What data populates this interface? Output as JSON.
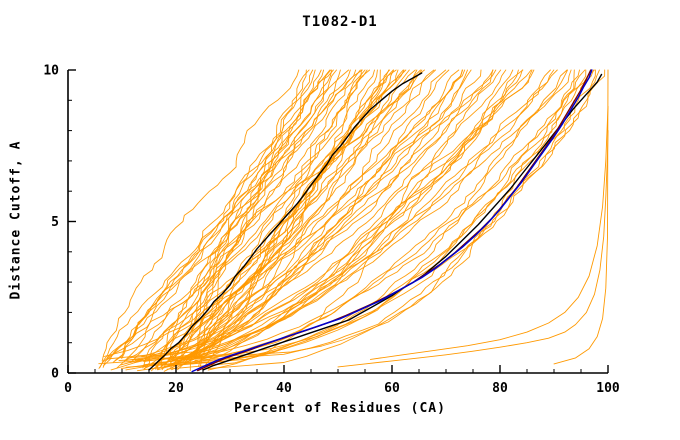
{
  "chart_data": {
    "type": "line",
    "title": "T1082-D1",
    "xlabel": "Percent of Residues (CA)",
    "ylabel": "Distance Cutoff, A",
    "xlim": [
      0,
      100
    ],
    "ylim": [
      0,
      10
    ],
    "x_major_ticks": [
      0,
      20,
      40,
      60,
      80,
      100
    ],
    "x_minor_step": 5,
    "y_major_ticks": [
      0,
      5,
      10
    ],
    "y_minor_step": 1,
    "grid": false,
    "axis_color": "#000000",
    "ensemble": {
      "description": "bundle of server model GDT curves",
      "color": "#FF9900",
      "width": 0.9,
      "count": 78,
      "seed": 7,
      "start_x_range": [
        5,
        26
      ],
      "end_x_range": [
        42,
        100
      ],
      "shape_range": [
        0.38,
        1.12
      ],
      "y_start_range": [
        0.05,
        0.55
      ],
      "jitter": 1.5,
      "steps": 48
    },
    "outlier_series": [
      {
        "name": "ensemble-outlier-1",
        "color": "#FF9900",
        "width": 0.9,
        "points": [
          [
            50,
            0.2
          ],
          [
            55,
            0.3
          ],
          [
            60,
            0.4
          ],
          [
            65,
            0.5
          ],
          [
            70,
            0.6
          ],
          [
            75,
            0.72
          ],
          [
            80,
            0.85
          ],
          [
            85,
            1.0
          ],
          [
            89,
            1.15
          ],
          [
            92,
            1.35
          ],
          [
            94,
            1.6
          ],
          [
            96,
            2.0
          ],
          [
            97.5,
            2.6
          ],
          [
            98.5,
            3.4
          ],
          [
            99.2,
            4.5
          ],
          [
            99.6,
            5.8
          ],
          [
            99.9,
            7.2
          ],
          [
            100,
            8.0
          ]
        ]
      },
      {
        "name": "ensemble-outlier-2",
        "color": "#FF9900",
        "width": 0.9,
        "points": [
          [
            56,
            0.45
          ],
          [
            62,
            0.6
          ],
          [
            68,
            0.75
          ],
          [
            74,
            0.9
          ],
          [
            80,
            1.1
          ],
          [
            85,
            1.35
          ],
          [
            89,
            1.65
          ],
          [
            92,
            2.0
          ],
          [
            94.5,
            2.5
          ],
          [
            96.5,
            3.2
          ],
          [
            98,
            4.2
          ],
          [
            99,
            5.5
          ],
          [
            99.6,
            7.0
          ],
          [
            100,
            8.8
          ]
        ]
      },
      {
        "name": "ensemble-outlier-3",
        "color": "#FF9900",
        "width": 0.9,
        "points": [
          [
            90,
            0.3
          ],
          [
            94,
            0.5
          ],
          [
            96.5,
            0.8
          ],
          [
            98,
            1.2
          ],
          [
            99,
            1.8
          ],
          [
            99.6,
            2.8
          ],
          [
            99.9,
            4.5
          ],
          [
            100,
            10
          ]
        ]
      }
    ],
    "highlight_series": [
      {
        "name": "model-1-black",
        "color": "#000000",
        "width": 1.4,
        "points": [
          [
            15,
            0.1
          ],
          [
            16.5,
            0.35
          ],
          [
            18,
            0.6
          ],
          [
            19,
            0.8
          ],
          [
            20.5,
            1.0
          ],
          [
            22,
            1.3
          ],
          [
            23,
            1.55
          ],
          [
            24.5,
            1.8
          ],
          [
            26,
            2.1
          ],
          [
            27,
            2.35
          ],
          [
            28.5,
            2.6
          ],
          [
            30,
            2.9
          ],
          [
            31,
            3.2
          ],
          [
            32.5,
            3.5
          ],
          [
            34,
            3.85
          ],
          [
            35,
            4.1
          ],
          [
            36.5,
            4.4
          ],
          [
            38,
            4.7
          ],
          [
            39.5,
            5.0
          ],
          [
            41,
            5.3
          ],
          [
            42.5,
            5.6
          ],
          [
            44,
            5.95
          ],
          [
            45,
            6.2
          ],
          [
            46.5,
            6.55
          ],
          [
            48,
            6.9
          ],
          [
            49,
            7.2
          ],
          [
            50.5,
            7.5
          ],
          [
            52,
            7.85
          ],
          [
            53,
            8.1
          ],
          [
            54.5,
            8.4
          ],
          [
            56,
            8.7
          ],
          [
            58,
            9.0
          ],
          [
            60,
            9.3
          ],
          [
            62,
            9.55
          ],
          [
            64,
            9.75
          ],
          [
            65.5,
            9.9
          ]
        ]
      },
      {
        "name": "model-2-black",
        "color": "#000000",
        "width": 1.4,
        "points": [
          [
            25,
            0.1
          ],
          [
            27,
            0.25
          ],
          [
            29.5,
            0.4
          ],
          [
            32,
            0.55
          ],
          [
            34.5,
            0.7
          ],
          [
            37,
            0.85
          ],
          [
            39.5,
            1.0
          ],
          [
            42,
            1.15
          ],
          [
            44.5,
            1.3
          ],
          [
            47,
            1.45
          ],
          [
            49.5,
            1.6
          ],
          [
            52,
            1.75
          ],
          [
            54,
            1.95
          ],
          [
            56,
            2.15
          ],
          [
            58,
            2.35
          ],
          [
            60,
            2.55
          ],
          [
            62,
            2.8
          ],
          [
            64,
            3.0
          ],
          [
            66,
            3.25
          ],
          [
            68,
            3.55
          ],
          [
            70,
            3.85
          ],
          [
            72,
            4.2
          ],
          [
            74,
            4.55
          ],
          [
            76,
            4.9
          ],
          [
            78,
            5.3
          ],
          [
            80,
            5.7
          ],
          [
            82,
            6.1
          ],
          [
            84,
            6.55
          ],
          [
            86,
            7.0
          ],
          [
            88,
            7.45
          ],
          [
            90,
            7.9
          ],
          [
            92,
            8.35
          ],
          [
            93.5,
            8.7
          ],
          [
            95,
            9.0
          ],
          [
            96.5,
            9.3
          ],
          [
            98,
            9.6
          ],
          [
            98.8,
            9.85
          ]
        ]
      },
      {
        "name": "reference-darkred",
        "color": "#7A0000",
        "width": 1.3,
        "points": [
          [
            24,
            0.08
          ],
          [
            26.5,
            0.28
          ],
          [
            29,
            0.48
          ],
          [
            31.5,
            0.63
          ],
          [
            34,
            0.78
          ],
          [
            36.5,
            0.95
          ],
          [
            39,
            1.1
          ],
          [
            41.5,
            1.25
          ],
          [
            44,
            1.4
          ],
          [
            46.5,
            1.55
          ],
          [
            49,
            1.72
          ],
          [
            51.5,
            1.9
          ],
          [
            54,
            2.1
          ],
          [
            56.5,
            2.3
          ],
          [
            59,
            2.52
          ],
          [
            61.5,
            2.75
          ],
          [
            64,
            3.0
          ],
          [
            66.5,
            3.3
          ],
          [
            69,
            3.6
          ],
          [
            71.5,
            3.95
          ],
          [
            74,
            4.35
          ],
          [
            76.5,
            4.75
          ],
          [
            79,
            5.2
          ],
          [
            81,
            5.65
          ],
          [
            83,
            6.1
          ],
          [
            85,
            6.6
          ],
          [
            87,
            7.1
          ],
          [
            89,
            7.6
          ],
          [
            90.5,
            8.0
          ],
          [
            92,
            8.45
          ],
          [
            93.5,
            8.9
          ],
          [
            95,
            9.35
          ],
          [
            96,
            9.7
          ],
          [
            96.8,
            10
          ]
        ]
      },
      {
        "name": "best-model-blue",
        "color": "#0000CC",
        "width": 1.5,
        "points": [
          [
            23,
            0.05
          ],
          [
            25.5,
            0.25
          ],
          [
            28,
            0.45
          ],
          [
            30.5,
            0.6
          ],
          [
            33,
            0.75
          ],
          [
            35.5,
            0.9
          ],
          [
            38,
            1.05
          ],
          [
            40.5,
            1.2
          ],
          [
            43,
            1.35
          ],
          [
            45.5,
            1.5
          ],
          [
            48,
            1.65
          ],
          [
            50.5,
            1.8
          ],
          [
            53,
            2.0
          ],
          [
            55.5,
            2.2
          ],
          [
            58,
            2.4
          ],
          [
            60.5,
            2.65
          ],
          [
            63,
            2.9
          ],
          [
            65.5,
            3.15
          ],
          [
            68,
            3.45
          ],
          [
            70.5,
            3.8
          ],
          [
            73,
            4.15
          ],
          [
            75.5,
            4.55
          ],
          [
            78,
            5.0
          ],
          [
            80,
            5.4
          ],
          [
            82,
            5.85
          ],
          [
            84,
            6.3
          ],
          [
            86,
            6.8
          ],
          [
            88,
            7.3
          ],
          [
            90,
            7.8
          ],
          [
            91.5,
            8.2
          ],
          [
            93,
            8.65
          ],
          [
            94.5,
            9.1
          ],
          [
            95.5,
            9.45
          ],
          [
            96.5,
            9.75
          ],
          [
            97,
            10
          ]
        ]
      }
    ]
  }
}
